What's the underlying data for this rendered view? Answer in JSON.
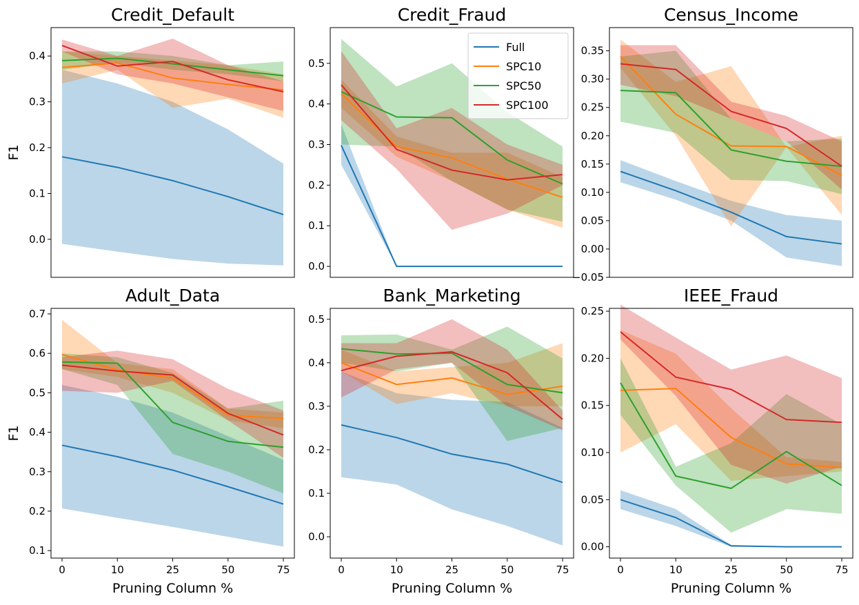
{
  "chart_data": [
    {
      "type": "line",
      "title": "Credit_Default",
      "ylabel": "F1",
      "categories": [
        null,
        null,
        null,
        null,
        null
      ],
      "ylim": [
        -0.083,
        0.462
      ],
      "yticks": [
        {
          "value": 0,
          "label": "0.0"
        },
        0.1,
        0.2,
        0.3,
        0.4
      ],
      "series": [
        {
          "color": "#1f77b4",
          "values": [
            0.18,
            0.157,
            0.128,
            0.093,
            0.054
          ],
          "upper": [
            0.37,
            0.34,
            0.3,
            0.24,
            0.165
          ],
          "lower": [
            -0.01,
            -0.027,
            -0.043,
            -0.053,
            -0.057
          ]
        },
        {
          "color": "#ff7f0e",
          "values": [
            0.375,
            0.385,
            0.352,
            0.338,
            0.326
          ],
          "upper": [
            0.41,
            0.4,
            0.39,
            0.38,
            0.36
          ],
          "lower": [
            0.34,
            0.37,
            0.287,
            0.307,
            0.265
          ]
        },
        {
          "color": "#2ca02c",
          "values": [
            0.39,
            0.395,
            0.383,
            0.37,
            0.357
          ],
          "upper": [
            0.41,
            0.41,
            0.4,
            0.38,
            0.388
          ],
          "lower": [
            0.37,
            0.385,
            0.37,
            0.36,
            0.345
          ]
        },
        {
          "color": "#d62728",
          "values": [
            0.423,
            0.378,
            0.388,
            0.348,
            0.322
          ],
          "upper": [
            0.436,
            0.4,
            0.438,
            0.38,
            0.345
          ],
          "lower": [
            0.41,
            0.36,
            0.34,
            0.31,
            0.28
          ]
        }
      ]
    },
    {
      "type": "line",
      "title": "Credit_Fraud",
      "legend": "upper right",
      "categories": [
        null,
        null,
        null,
        null,
        null
      ],
      "ylim": [
        -0.027,
        0.588
      ],
      "yticks": [
        {
          "value": 0,
          "label": "0.0"
        },
        0.1,
        0.2,
        0.3,
        0.4,
        0.5
      ],
      "series": [
        {
          "name": "Full",
          "color": "#1f77b4",
          "values": [
            0.298,
            0,
            0,
            0,
            0
          ],
          "upper": [
            0.35,
            0,
            0,
            0,
            0
          ],
          "lower": [
            0.25,
            0,
            0,
            0,
            0
          ]
        },
        {
          "name": "SPC10",
          "color": "#ff7f0e",
          "values": [
            0.425,
            0.295,
            0.267,
            0.215,
            0.17
          ],
          "upper": [
            0.46,
            0.32,
            0.28,
            0.28,
            0.22
          ],
          "lower": [
            0.39,
            0.27,
            0.21,
            0.14,
            0.095
          ]
        },
        {
          "name": "SPC50",
          "color": "#2ca02c",
          "values": [
            0.43,
            0.368,
            0.366,
            0.262,
            0.203
          ],
          "upper": [
            0.56,
            0.443,
            0.5,
            0.38,
            0.295
          ],
          "lower": [
            0.3,
            0.295,
            0.21,
            0.14,
            0.11
          ]
        },
        {
          "name": "SPC100",
          "color": "#d62728",
          "values": [
            0.447,
            0.288,
            0.237,
            0.213,
            0.226
          ],
          "upper": [
            0.53,
            0.34,
            0.39,
            0.3,
            0.25
          ],
          "lower": [
            0.36,
            0.24,
            0.09,
            0.13,
            0.2
          ]
        }
      ]
    },
    {
      "type": "line",
      "title": "Census_Income",
      "categories": [
        null,
        null,
        null,
        null,
        null
      ],
      "ylim": [
        -0.05,
        0.391
      ],
      "yticks": [
        {
          "value": -0.05,
          "label": "−0.05"
        },
        {
          "value": 0,
          "label": "0.00"
        },
        0.05,
        {
          "value": 0.1,
          "label": "0.10"
        },
        0.15,
        {
          "value": 0.2,
          "label": "0.20"
        },
        0.25,
        {
          "value": 0.3,
          "label": "0.30"
        },
        0.35
      ],
      "series": [
        {
          "color": "#1f77b4",
          "values": [
            0.137,
            0.103,
            0.065,
            0.022,
            0.009
          ],
          "upper": [
            0.157,
            0.12,
            0.085,
            0.06,
            0.05
          ],
          "lower": [
            0.118,
            0.087,
            0.05,
            -0.015,
            -0.03
          ]
        },
        {
          "color": "#ff7f0e",
          "values": [
            0.34,
            0.238,
            0.182,
            0.181,
            0.13
          ],
          "upper": [
            0.37,
            0.295,
            0.323,
            0.18,
            0.2
          ],
          "lower": [
            0.32,
            0.2,
            0.04,
            0.18,
            0.06
          ]
        },
        {
          "color": "#2ca02c",
          "values": [
            0.28,
            0.276,
            0.175,
            0.155,
            0.146
          ],
          "upper": [
            0.34,
            0.35,
            0.23,
            0.19,
            0.195
          ],
          "lower": [
            0.225,
            0.205,
            0.122,
            0.12,
            0.097
          ]
        },
        {
          "color": "#d62728",
          "values": [
            0.327,
            0.317,
            0.243,
            0.213,
            0.146
          ],
          "upper": [
            0.36,
            0.36,
            0.26,
            0.235,
            0.19
          ],
          "lower": [
            0.29,
            0.27,
            0.23,
            0.19,
            0.105
          ]
        }
      ]
    },
    {
      "type": "line",
      "title": "Adult_Data",
      "ylabel": "F1",
      "xlabel": "Pruning Column %",
      "categories": [
        "0",
        "10",
        "25",
        "50",
        "75"
      ],
      "ylim": [
        0.081,
        0.714
      ],
      "yticks": [
        0.1,
        0.2,
        0.3,
        0.4,
        0.5,
        0.6,
        0.7
      ],
      "series": [
        {
          "color": "#1f77b4",
          "values": [
            0.367,
            0.338,
            0.304,
            0.262,
            0.218
          ],
          "upper": [
            0.52,
            0.49,
            0.45,
            0.39,
            0.33
          ],
          "lower": [
            0.207,
            0.183,
            0.16,
            0.135,
            0.11
          ]
        },
        {
          "color": "#ff7f0e",
          "values": [
            0.597,
            0.558,
            0.537,
            0.443,
            0.435
          ],
          "upper": [
            0.685,
            0.575,
            0.56,
            0.46,
            0.45
          ],
          "lower": [
            0.56,
            0.54,
            0.5,
            0.43,
            0.41
          ]
        },
        {
          "color": "#2ca02c",
          "values": [
            0.578,
            0.575,
            0.425,
            0.377,
            0.362
          ],
          "upper": [
            0.6,
            0.59,
            0.55,
            0.46,
            0.48
          ],
          "lower": [
            0.56,
            0.52,
            0.345,
            0.3,
            0.245
          ]
        },
        {
          "color": "#d62728",
          "values": [
            0.57,
            0.555,
            0.545,
            0.448,
            0.393
          ],
          "upper": [
            0.59,
            0.607,
            0.585,
            0.51,
            0.455
          ],
          "lower": [
            0.505,
            0.5,
            0.53,
            0.43,
            0.335
          ]
        }
      ]
    },
    {
      "type": "line",
      "title": "Bank_Marketing",
      "xlabel": "Pruning Column %",
      "categories": [
        "0",
        "10",
        "25",
        "50",
        "75"
      ],
      "ylim": [
        -0.049,
        0.525
      ],
      "yticks": [
        {
          "value": 0,
          "label": "0.0"
        },
        0.1,
        0.2,
        0.3,
        0.4,
        0.5
      ],
      "series": [
        {
          "color": "#1f77b4",
          "values": [
            0.257,
            0.228,
            0.19,
            0.167,
            0.125
          ],
          "upper": [
            0.38,
            0.33,
            0.315,
            0.31,
            0.25
          ],
          "lower": [
            0.137,
            0.12,
            0.063,
            0.025,
            -0.02
          ]
        },
        {
          "color": "#ff7f0e",
          "values": [
            0.4,
            0.35,
            0.365,
            0.327,
            0.346
          ],
          "upper": [
            0.43,
            0.38,
            0.39,
            0.4,
            0.445
          ],
          "lower": [
            0.38,
            0.305,
            0.33,
            0.3,
            0.3
          ]
        },
        {
          "color": "#2ca02c",
          "values": [
            0.432,
            0.42,
            0.422,
            0.35,
            0.331
          ],
          "upper": [
            0.463,
            0.465,
            0.43,
            0.483,
            0.41
          ],
          "lower": [
            0.4,
            0.38,
            0.4,
            0.22,
            0.25
          ]
        },
        {
          "color": "#d62728",
          "values": [
            0.382,
            0.415,
            0.425,
            0.377,
            0.27
          ],
          "upper": [
            0.445,
            0.445,
            0.5,
            0.43,
            0.29
          ],
          "lower": [
            0.32,
            0.385,
            0.4,
            0.3,
            0.245
          ]
        }
      ]
    },
    {
      "type": "line",
      "title": "IEEE_Fraud",
      "xlabel": "Pruning Column %",
      "categories": [
        "0",
        "10",
        "25",
        "50",
        "75"
      ],
      "ylim": [
        -0.012,
        0.253
      ],
      "yticks": [
        {
          "value": 0,
          "label": "0.00"
        },
        0.05,
        {
          "value": 0.1,
          "label": "0.10"
        },
        0.15,
        {
          "value": 0.2,
          "label": "0.20"
        },
        0.25
      ],
      "series": [
        {
          "color": "#1f77b4",
          "values": [
            0.05,
            0.031,
            0.001,
            0,
            0
          ],
          "upper": [
            0.06,
            0.04,
            0.002,
            0,
            0
          ],
          "lower": [
            0.04,
            0.022,
            0,
            0,
            0
          ]
        },
        {
          "color": "#ff7f0e",
          "values": [
            0.166,
            0.168,
            0.116,
            0.088,
            0.084
          ],
          "upper": [
            0.23,
            0.205,
            0.147,
            0.095,
            0.09
          ],
          "lower": [
            0.1,
            0.13,
            0.07,
            0.075,
            0.08
          ]
        },
        {
          "color": "#2ca02c",
          "values": [
            0.174,
            0.075,
            0.062,
            0.101,
            0.065
          ],
          "upper": [
            0.2,
            0.085,
            0.11,
            0.162,
            0.13
          ],
          "lower": [
            0.14,
            0.065,
            0.015,
            0.04,
            0.035
          ]
        },
        {
          "color": "#d62728",
          "values": [
            0.228,
            0.18,
            0.167,
            0.135,
            0.132
          ],
          "upper": [
            0.257,
            0.222,
            0.188,
            0.203,
            0.179
          ],
          "lower": [
            0.22,
            0.16,
            0.087,
            0.067,
            0.085
          ]
        }
      ]
    }
  ]
}
